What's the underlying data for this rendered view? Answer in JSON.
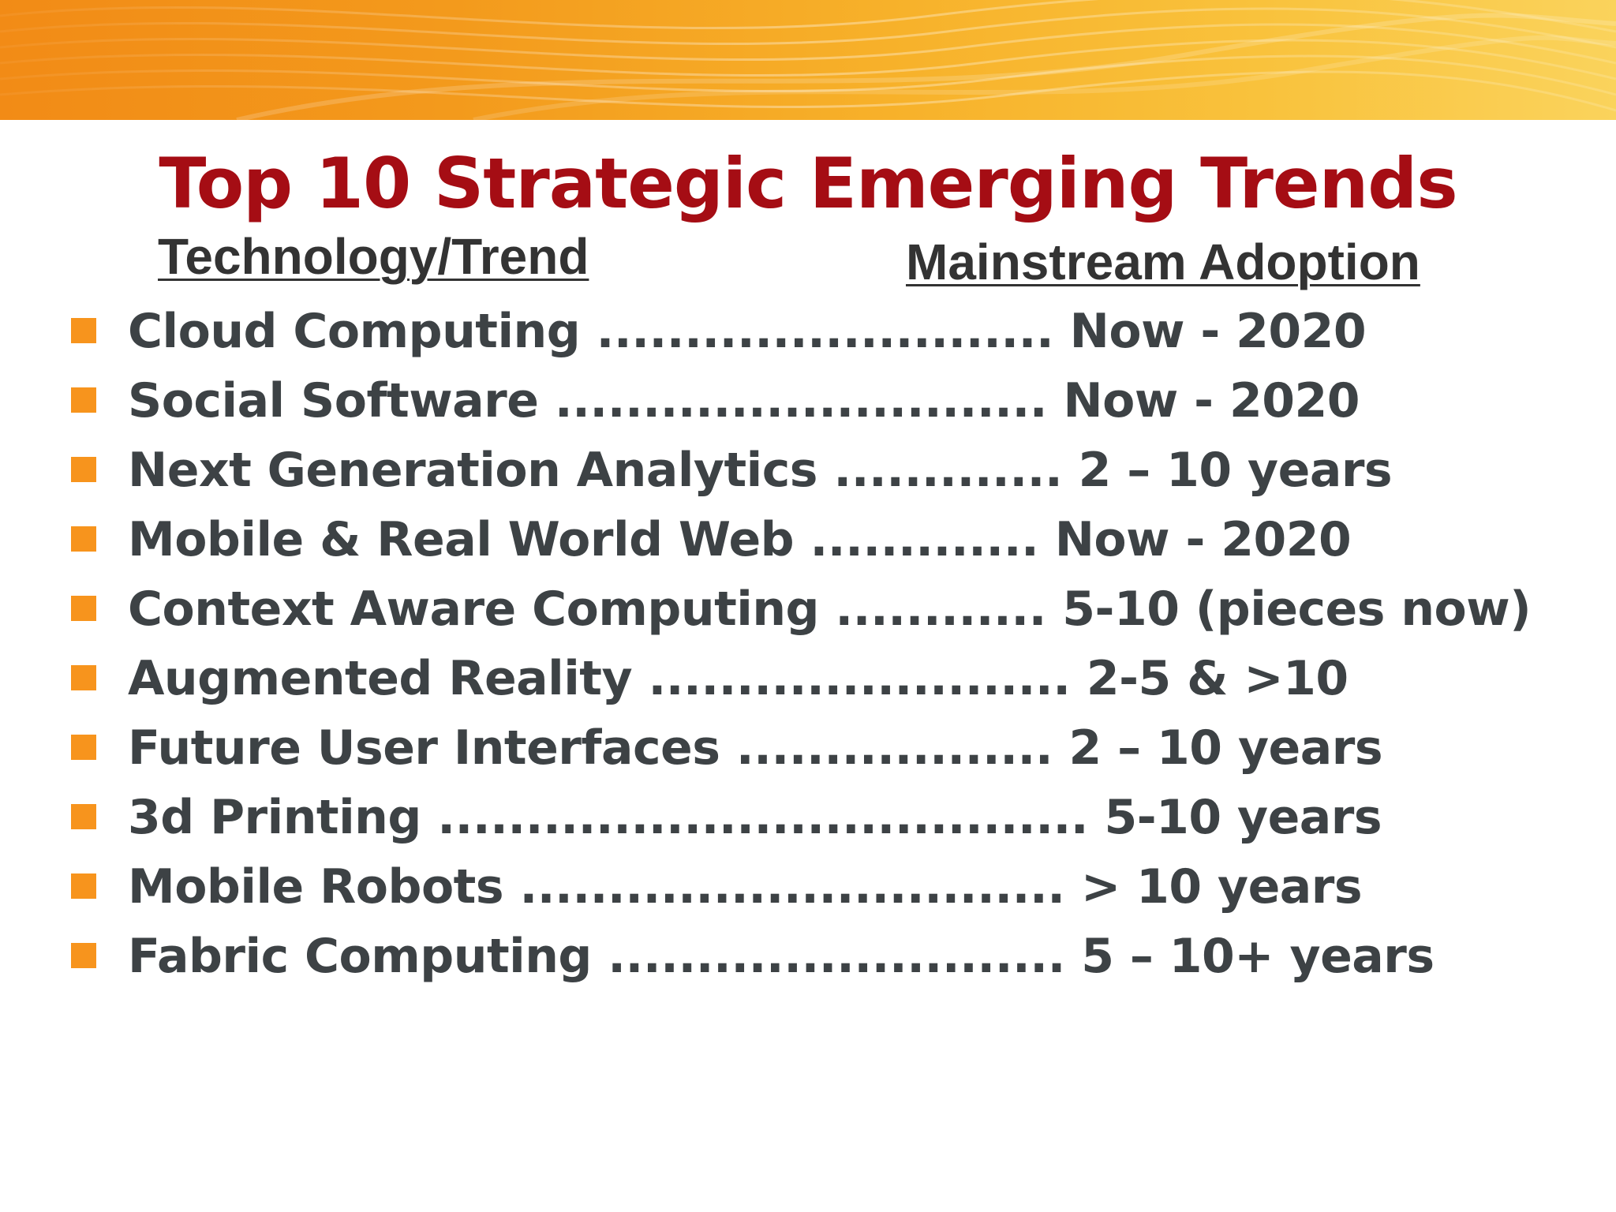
{
  "slide": {
    "title": "Top 10 Strategic Emerging Trends",
    "columns": {
      "technology": "Technology/Trend",
      "adoption": "Mainstream Adoption"
    },
    "colors": {
      "title": "#a50d14",
      "bullet": "#f7941d",
      "text": "#3d4245",
      "banner_start": "#f28b16",
      "banner_end": "#fad35c"
    },
    "trends": [
      {
        "name": "Cloud Computing",
        "leader": "..........................",
        "adoption": "Now - 2020"
      },
      {
        "name": "Social Software",
        "leader": "............................",
        "adoption": "Now - 2020"
      },
      {
        "name": "Next Generation Analytics",
        "leader": ".............",
        "adoption": "2 – 10 years"
      },
      {
        "name": "Mobile & Real World Web",
        "leader": ".............",
        "adoption": "Now - 2020"
      },
      {
        "name": "Context Aware Computing",
        "leader": "............",
        "adoption": "5-10 (pieces now)"
      },
      {
        "name": "Augmented Reality",
        "leader": "........................",
        "adoption": "2-5  &  >10"
      },
      {
        "name": "Future User Interfaces",
        "leader": "..................",
        "adoption": "2 – 10 years"
      },
      {
        "name": "3d Printing",
        "leader": ".....................................",
        "adoption": "5-10 years"
      },
      {
        "name": "Mobile Robots",
        "leader": "...............................",
        "adoption": "> 10 years"
      },
      {
        "name": "Fabric Computing",
        "leader": "..........................",
        "adoption": "5 – 10+ years"
      }
    ]
  }
}
